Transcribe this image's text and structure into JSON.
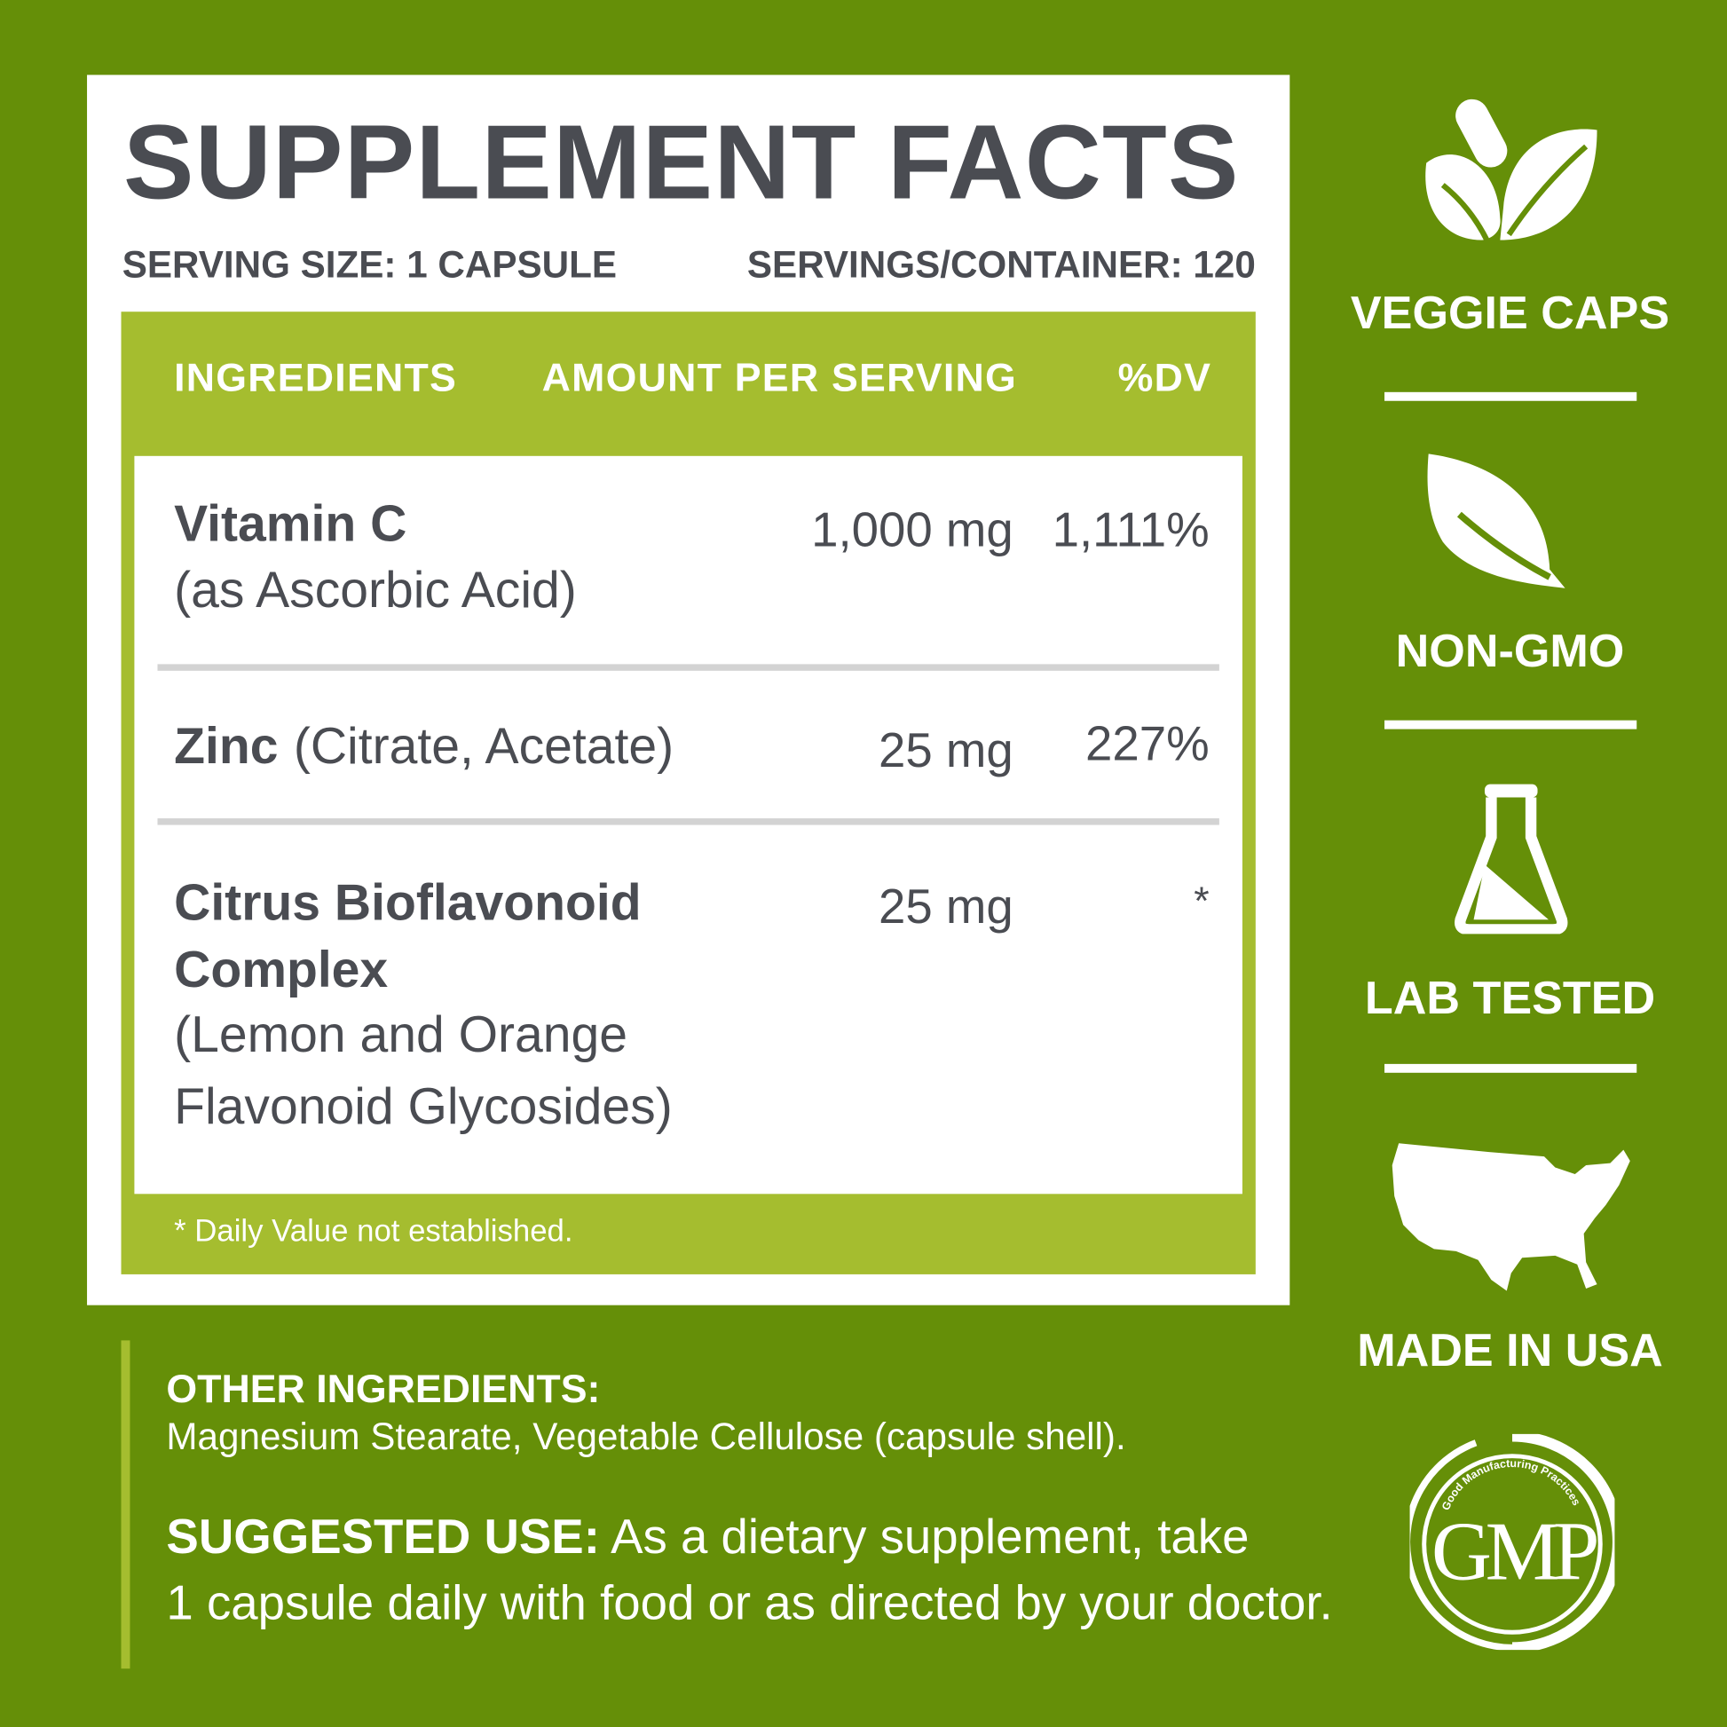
{
  "title": "SUPPLEMENT FACTS",
  "serving_size": "SERVING SIZE: 1 CAPSULE",
  "servings_per_container": "SERVINGS/CONTAINER: 120",
  "table": {
    "headers": [
      "INGREDIENTS",
      "AMOUNT PER SERVING",
      "%DV"
    ],
    "rows": [
      {
        "name": "Vitamin C",
        "detail": "(as Ascorbic Acid)",
        "amount": "1,000 mg",
        "dv": "1,111%"
      },
      {
        "name": "Zinc",
        "detail": "(Citrate, Acetate)",
        "amount": "25 mg",
        "dv": "227%"
      },
      {
        "name": "Citrus Bioflavonoid",
        "name2": "Complex",
        "detail": "(Lemon and Orange",
        "detail2": "Flavonoid Glycosides)",
        "amount": "25 mg",
        "dv": "*"
      }
    ],
    "footnote": "* Daily Value not established."
  },
  "other_ingredients": {
    "heading": "OTHER INGREDIENTS:",
    "text": "Magnesium Stearate, Vegetable Cellulose (capsule shell)."
  },
  "suggested_use": {
    "heading": "SUGGESTED USE:",
    "text1": " As a dietary supplement, take",
    "text2": "1 capsule daily with food or as directed by your doctor."
  },
  "badges": [
    {
      "label": "VEGGIE CAPS",
      "icon": "capsule-leaves-icon"
    },
    {
      "label": "NON-GMO",
      "icon": "leaf-icon"
    },
    {
      "label": "LAB TESTED",
      "icon": "flask-icon"
    },
    {
      "label": "MADE IN USA",
      "icon": "usa-map-icon"
    }
  ],
  "gmp_logo": {
    "text": "GMP",
    "ring_text": "Good Manufacturing Practices"
  },
  "colors": {
    "background": "#658f08",
    "table_green": "#a5bd2f",
    "text_dark": "#4a4c52",
    "white": "#ffffff"
  }
}
